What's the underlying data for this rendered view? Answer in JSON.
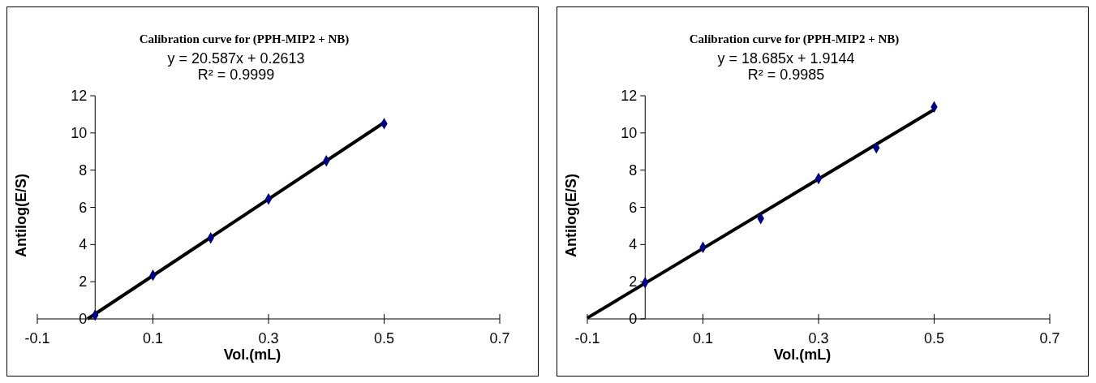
{
  "chart_data": [
    {
      "type": "scatter",
      "title": "Calibration curve for (PPH-MIP2 + NB)",
      "xlabel": "Vol.(mL)",
      "ylabel": "Antilog(E/S)",
      "annotations": [
        "y = 20.587x + 0.2613",
        "R² = 0.9999"
      ],
      "series": [
        {
          "color": "#000080",
          "marker": "diamond",
          "x": [
            0,
            0.1,
            0.2,
            0.3,
            0.4,
            0.5
          ],
          "values": [
            0.2,
            2.35,
            4.35,
            6.45,
            8.5,
            10.5
          ]
        },
        {
          "type": "line",
          "color": "#000000",
          "x": [
            -0.013,
            0.5
          ],
          "values": [
            0,
            10.56
          ]
        }
      ],
      "xlim": [
        -0.1,
        0.7
      ],
      "xticks": [
        -0.1,
        0.1,
        0.3,
        0.5,
        0.7
      ],
      "ylim": [
        0,
        12
      ],
      "yticks": [
        0,
        2,
        4,
        6,
        8,
        10,
        12
      ],
      "grid": false
    },
    {
      "type": "scatter",
      "title": "Calibration curve for (PPH-MIP2 + NB)",
      "xlabel": "Vol.(mL)",
      "ylabel": "Antilog(E/S)",
      "annotations": [
        "y = 18.685x + 1.9144",
        "R² = 0.9985"
      ],
      "series": [
        {
          "color": "#000080",
          "marker": "diamond",
          "x": [
            0,
            0.1,
            0.2,
            0.3,
            0.4,
            0.5
          ],
          "values": [
            1.95,
            3.85,
            5.4,
            7.55,
            9.2,
            11.4
          ]
        },
        {
          "type": "line",
          "color": "#000000",
          "x": [
            -0.1,
            0.5
          ],
          "values": [
            0.05,
            11.26
          ]
        }
      ],
      "xlim": [
        -0.1,
        0.7
      ],
      "xticks": [
        -0.1,
        0.1,
        0.3,
        0.5,
        0.7
      ],
      "ylim": [
        0,
        12
      ],
      "yticks": [
        0,
        2,
        4,
        6,
        8,
        10,
        12
      ],
      "grid": false
    }
  ]
}
